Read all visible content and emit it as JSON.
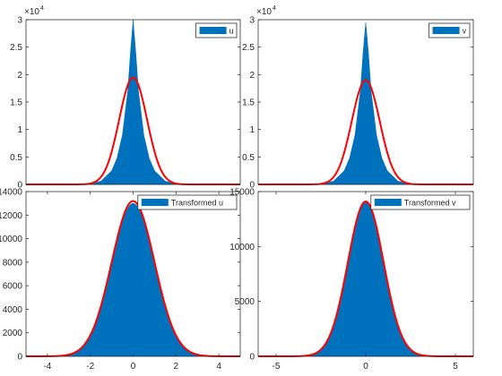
{
  "figure": {
    "background": "#ffffff",
    "bar_color": "#0072bd",
    "fit_color": "#ff0000"
  },
  "chart_data": [
    {
      "type": "bar",
      "name_hint": "u",
      "exponent_label": "×10",
      "exponent_sup": "4",
      "legend": [
        "u"
      ],
      "legend_location": "top-right",
      "xlim": [
        -20,
        20
      ],
      "ylim": [
        0,
        30000
      ],
      "xticks": [],
      "yticks": [
        0,
        5000,
        10000,
        15000,
        20000,
        25000,
        30000
      ],
      "ytick_labels": [
        "0",
        "0.5",
        "1",
        "1.5",
        "2",
        "2.5",
        "3"
      ],
      "hist": {
        "x": [
          -10,
          -8,
          -6,
          -4,
          -3,
          -2,
          -1,
          -0.5,
          0,
          0.5,
          1,
          2,
          3,
          4,
          6,
          8,
          10
        ],
        "y": [
          0,
          150,
          600,
          2500,
          4800,
          9000,
          17000,
          24000,
          30000,
          24000,
          17000,
          9000,
          4800,
          2500,
          600,
          150,
          0
        ]
      },
      "fit": {
        "peak": 19500,
        "mu": 0,
        "sigma": 2.6
      }
    },
    {
      "type": "bar",
      "exponent_label": "×10",
      "exponent_sup": "4",
      "legend": [
        "v"
      ],
      "legend_location": "top-right",
      "xlim": [
        -20,
        20
      ],
      "ylim": [
        0,
        30000
      ],
      "xticks": [],
      "yticks": [
        0,
        5000,
        10000,
        15000,
        20000,
        25000,
        30000
      ],
      "ytick_labels": [
        "0",
        "0.5",
        "1",
        "1.5",
        "2",
        "2.5",
        "3"
      ],
      "hist": {
        "x": [
          -10,
          -8,
          -6,
          -4,
          -3,
          -2,
          -1,
          -0.5,
          0,
          0.5,
          1,
          2,
          3,
          4,
          6,
          8,
          10
        ],
        "y": [
          0,
          150,
          600,
          2500,
          4800,
          9000,
          17000,
          24000,
          29500,
          24000,
          17000,
          9000,
          4800,
          2500,
          600,
          150,
          0
        ]
      },
      "fit": {
        "peak": 19000,
        "mu": 0,
        "sigma": 2.6
      }
    },
    {
      "type": "bar",
      "legend": [
        "Transformed u"
      ],
      "legend_location": "top-right",
      "xlim": [
        -5,
        5
      ],
      "ylim": [
        0,
        14000
      ],
      "xticks": [
        -4,
        -2,
        0,
        2,
        4
      ],
      "xtick_labels": [
        "-4",
        "-2",
        "0",
        "2",
        "4"
      ],
      "yticks": [
        0,
        2000,
        4000,
        6000,
        8000,
        10000,
        12000,
        14000
      ],
      "ytick_labels": [
        "0",
        "2000",
        "4000",
        "6000",
        "8000",
        "10000",
        "12000",
        "14000"
      ],
      "hist": {
        "peak": 13000,
        "mu": 0,
        "sigma": 1.0
      },
      "fit": {
        "peak": 13200,
        "mu": 0,
        "sigma": 1.0
      }
    },
    {
      "type": "bar",
      "legend": [
        "Transformed v"
      ],
      "legend_location": "top-right",
      "xlim": [
        -6,
        6
      ],
      "ylim": [
        0,
        15000
      ],
      "xticks": [
        -5,
        0,
        5
      ],
      "xtick_labels": [
        "-5",
        "0",
        "5"
      ],
      "yticks": [
        0,
        5000,
        10000,
        15000
      ],
      "ytick_labels": [
        "0",
        "5000",
        "10000",
        "15000"
      ],
      "hist": {
        "peak": 14000,
        "mu": 0,
        "sigma": 1.0
      },
      "fit": {
        "peak": 14100,
        "mu": 0,
        "sigma": 1.0
      }
    }
  ]
}
